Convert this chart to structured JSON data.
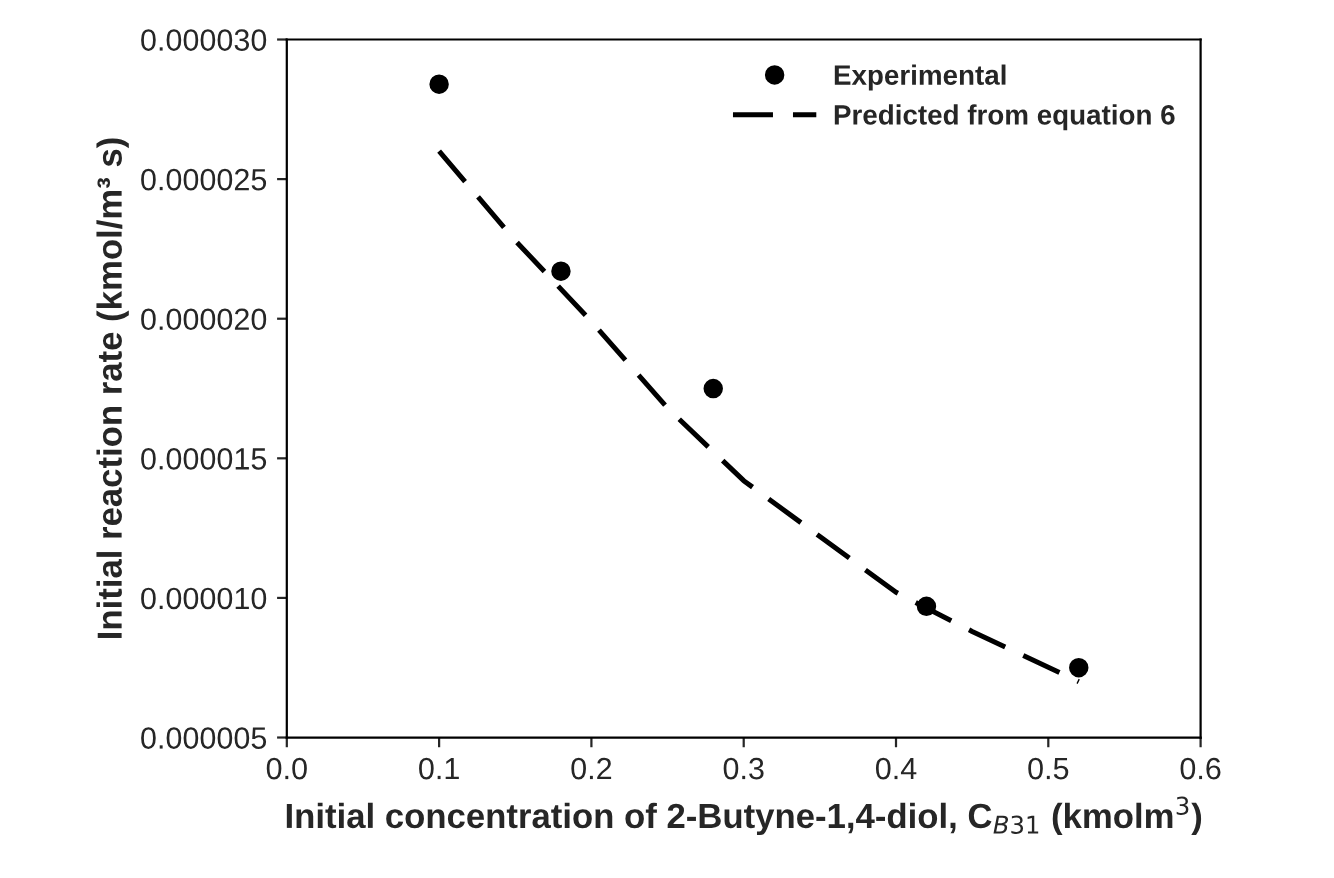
{
  "chart_data": {
    "type": "scatter",
    "xlabel": "Initial concentration of 2-Butyne-1,4-diol, C$_{B31}$ (kmolm$^{3}$)",
    "ylabel": "Initial reaction rate (kmol/m³ s)",
    "xlim": [
      0,
      0.6
    ],
    "xticks": [
      {
        "value": 0,
        "label": "0.0"
      },
      0.1,
      0.2,
      0.3,
      0.4,
      0.5,
      0.6
    ],
    "ylim": [
      5e-06,
      3e-05
    ],
    "yticks": [
      {
        "value": 5e-06,
        "label": "0.000005"
      },
      {
        "value": 1e-05,
        "label": "0.000010"
      },
      {
        "value": 1.5e-05,
        "label": "0.000015"
      },
      {
        "value": 2e-05,
        "label": "0.000020"
      },
      {
        "value": 2.5e-05,
        "label": "0.000025"
      },
      {
        "value": 3e-05,
        "label": "0.000030"
      }
    ],
    "grid": false,
    "legend": "top right",
    "series": [
      {
        "name": "Experimental",
        "marker": "circle",
        "color": "#000000",
        "x": [
          0.1,
          0.18,
          0.28,
          0.42,
          0.52
        ],
        "values": [
          2.84e-05,
          2.17e-05,
          1.75e-05,
          9.7e-06,
          7.5e-06
        ]
      },
      {
        "name": "Predicted from equation 6",
        "type": "line",
        "line_style": "dashed",
        "color": "#000000",
        "x": [
          0.1,
          0.15,
          0.2,
          0.25,
          0.3,
          0.35,
          0.4,
          0.45,
          0.52
        ],
        "values": [
          2.6e-05,
          2.28e-05,
          1.99e-05,
          1.68e-05,
          1.42e-05,
          1.22e-05,
          1.02e-05,
          8.8e-06,
          7e-06
        ]
      }
    ]
  }
}
